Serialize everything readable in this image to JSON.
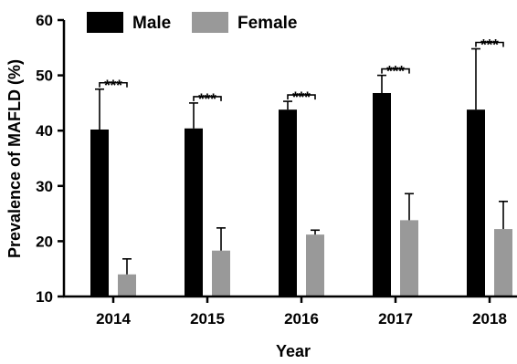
{
  "chart_data": {
    "type": "bar",
    "title": "",
    "xlabel": "Year",
    "ylabel": "Prevalence of MAFLD (%)",
    "ylim": [
      10,
      60
    ],
    "yticks": [
      "10",
      "20",
      "30",
      "40",
      "50",
      "60"
    ],
    "categories": [
      "2014",
      "2015",
      "2016",
      "2017",
      "2018"
    ],
    "series": [
      {
        "name": "Male",
        "color": "#000000",
        "values": [
          40.2,
          40.4,
          43.8,
          46.8,
          43.8
        ],
        "errors": [
          7.3,
          4.6,
          1.5,
          3.2,
          11.0
        ]
      },
      {
        "name": "Female",
        "color": "#999999",
        "values": [
          14.0,
          18.3,
          21.2,
          23.8,
          22.2
        ],
        "errors": [
          2.8,
          4.1,
          0.8,
          4.8,
          5.0
        ]
      }
    ],
    "significance": [
      "***",
      "***",
      "***",
      "***",
      "***"
    ],
    "legend": "top-left",
    "grid": false
  }
}
